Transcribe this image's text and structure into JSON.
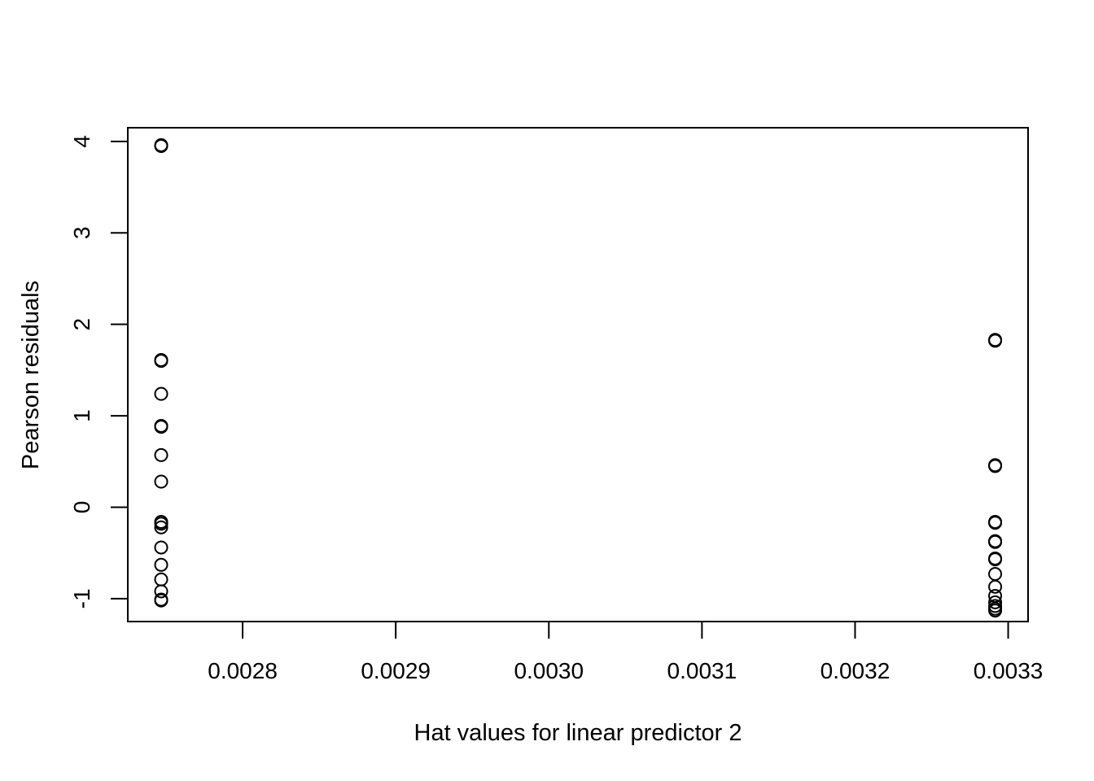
{
  "chart_data": {
    "type": "scatter",
    "title": "",
    "xlabel": "Hat values for linear predictor 2",
    "ylabel": "Pearson residuals",
    "xlim": [
      0.002725,
      0.003313
    ],
    "ylim": [
      -1.25,
      4.15
    ],
    "x_ticks": [
      {
        "value": 0.0028,
        "label": "0.0028"
      },
      {
        "value": 0.0029,
        "label": "0.0029"
      },
      {
        "value": 0.003,
        "label": "0.0030"
      },
      {
        "value": 0.0031,
        "label": "0.0031"
      },
      {
        "value": 0.0032,
        "label": "0.0032"
      },
      {
        "value": 0.0033,
        "label": "0.0033"
      }
    ],
    "y_ticks": [
      {
        "value": -1,
        "label": "-1"
      },
      {
        "value": 0,
        "label": "0"
      },
      {
        "value": 1,
        "label": "1"
      },
      {
        "value": 2,
        "label": "2"
      },
      {
        "value": 3,
        "label": "3"
      },
      {
        "value": 4,
        "label": "4"
      }
    ],
    "grid": false,
    "legend": "none",
    "marker": "open-circle",
    "points": [
      {
        "x": 0.0027468,
        "y": 3.96
      },
      {
        "x": 0.0027468,
        "y": 3.95
      },
      {
        "x": 0.0027468,
        "y": 1.61
      },
      {
        "x": 0.0027468,
        "y": 1.6
      },
      {
        "x": 0.0027468,
        "y": 1.24
      },
      {
        "x": 0.0027468,
        "y": 0.89
      },
      {
        "x": 0.0027468,
        "y": 0.88
      },
      {
        "x": 0.0027468,
        "y": 0.57
      },
      {
        "x": 0.0027468,
        "y": 0.28
      },
      {
        "x": 0.0027468,
        "y": -0.16
      },
      {
        "x": 0.0027468,
        "y": -0.18
      },
      {
        "x": 0.0027468,
        "y": -0.22
      },
      {
        "x": 0.0027468,
        "y": -0.44
      },
      {
        "x": 0.0027468,
        "y": -0.63
      },
      {
        "x": 0.0027468,
        "y": -0.79
      },
      {
        "x": 0.0027468,
        "y": -0.92
      },
      {
        "x": 0.0027468,
        "y": -1.01
      },
      {
        "x": 0.0027468,
        "y": -1.02
      },
      {
        "x": 0.0032915,
        "y": 1.83
      },
      {
        "x": 0.0032915,
        "y": 1.82
      },
      {
        "x": 0.0032915,
        "y": 0.46
      },
      {
        "x": 0.0032915,
        "y": 0.45
      },
      {
        "x": 0.0032915,
        "y": -0.16
      },
      {
        "x": 0.0032915,
        "y": -0.17
      },
      {
        "x": 0.0032915,
        "y": -0.37
      },
      {
        "x": 0.0032915,
        "y": -0.38
      },
      {
        "x": 0.0032915,
        "y": -0.56
      },
      {
        "x": 0.0032915,
        "y": -0.57
      },
      {
        "x": 0.0032915,
        "y": -0.73
      },
      {
        "x": 0.0032915,
        "y": -0.87
      },
      {
        "x": 0.0032915,
        "y": -0.97
      },
      {
        "x": 0.0032915,
        "y": -1.04
      },
      {
        "x": 0.0032915,
        "y": -1.08
      },
      {
        "x": 0.0032915,
        "y": -1.11
      },
      {
        "x": 0.0032915,
        "y": -1.13
      }
    ]
  }
}
